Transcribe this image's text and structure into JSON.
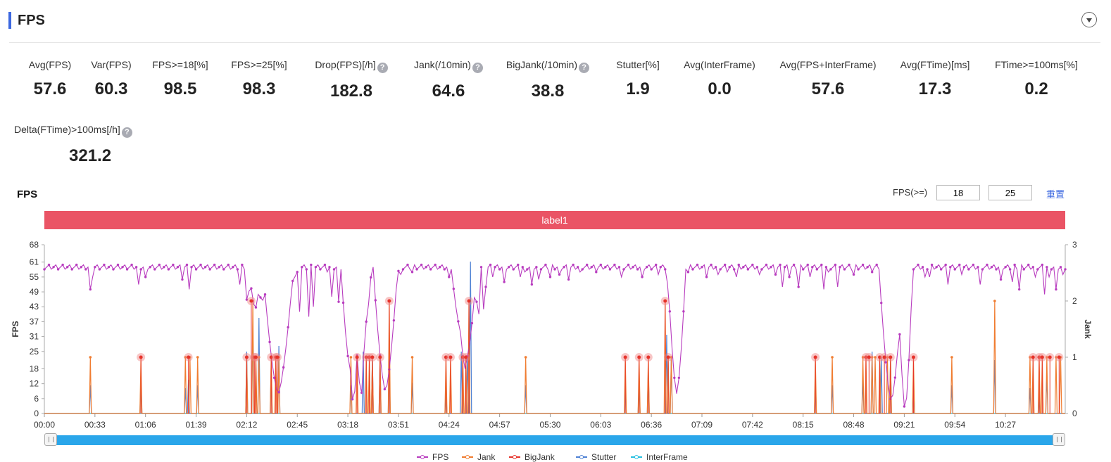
{
  "page": {
    "title": "FPS"
  },
  "metrics": [
    {
      "label": "Avg(FPS)",
      "value": "57.6",
      "help": false
    },
    {
      "label": "Var(FPS)",
      "value": "60.3",
      "help": false
    },
    {
      "label": "FPS>=18[%]",
      "value": "98.5",
      "help": false
    },
    {
      "label": "FPS>=25[%]",
      "value": "98.3",
      "help": false
    },
    {
      "label": "Drop(FPS)[/h]",
      "value": "182.8",
      "help": true
    },
    {
      "label": "Jank(/10min)",
      "value": "64.6",
      "help": true
    },
    {
      "label": "BigJank(/10min)",
      "value": "38.8",
      "help": true
    },
    {
      "label": "Stutter[%]",
      "value": "1.9",
      "help": false
    },
    {
      "label": "Avg(InterFrame)",
      "value": "0.0",
      "help": false
    },
    {
      "label": "Avg(FPS+InterFrame)",
      "value": "57.6",
      "help": false
    },
    {
      "label": "Avg(FTime)[ms]",
      "value": "17.3",
      "help": false
    },
    {
      "label": "FTime>=100ms[%]",
      "value": "0.2",
      "help": false
    },
    {
      "label": "Delta(FTime)>100ms[/h]",
      "value": "321.2",
      "help": true
    }
  ],
  "help_glyph": "?",
  "chart": {
    "title": "FPS",
    "fps_threshold_label": "FPS(>=)",
    "threshold_low": "18",
    "threshold_high": "25",
    "reset_label": "重置",
    "band_label": "label1"
  },
  "chart_data": {
    "type": "line",
    "ylabel": "FPS",
    "y2label": "Jank",
    "yticks": [
      0,
      6,
      12,
      18,
      25,
      31,
      37,
      43,
      49,
      55,
      61,
      68
    ],
    "ylim": [
      0,
      68
    ],
    "y2ticks": [
      0,
      1,
      2,
      3
    ],
    "y2lim": [
      0,
      3
    ],
    "xticks": [
      "00:00",
      "00:33",
      "01:06",
      "01:39",
      "02:12",
      "02:45",
      "03:18",
      "03:51",
      "04:24",
      "04:57",
      "05:30",
      "06:03",
      "06:36",
      "07:09",
      "07:42",
      "08:15",
      "08:48",
      "09:21",
      "09:54",
      "10:27"
    ],
    "xlim_sec": [
      0,
      666
    ],
    "fps_baseline": 59,
    "fps_dips_sec": [
      [
        30,
        50
      ],
      [
        32,
        55
      ],
      [
        62,
        52
      ],
      [
        66,
        55
      ],
      [
        90,
        54
      ],
      [
        94,
        50
      ],
      [
        128,
        52
      ],
      [
        132,
        57
      ],
      [
        135,
        53
      ],
      [
        140,
        56
      ],
      [
        142,
        50
      ],
      [
        146,
        55
      ],
      [
        152,
        48
      ],
      [
        155,
        57
      ],
      [
        160,
        55
      ],
      [
        166,
        41
      ],
      [
        172,
        39
      ],
      [
        176,
        43
      ],
      [
        184,
        57
      ],
      [
        188,
        47
      ],
      [
        192,
        45
      ],
      [
        196,
        57
      ],
      [
        200,
        52
      ],
      [
        203,
        55
      ],
      [
        212,
        56
      ],
      [
        220,
        57
      ],
      [
        224,
        52
      ],
      [
        232,
        56
      ],
      [
        240,
        57
      ],
      [
        264,
        55
      ],
      [
        268,
        50
      ],
      [
        272,
        57
      ],
      [
        276,
        50
      ],
      [
        280,
        55
      ],
      [
        282,
        45
      ],
      [
        284,
        40
      ],
      [
        286,
        42
      ],
      [
        288,
        51
      ],
      [
        292,
        55
      ],
      [
        300,
        53
      ],
      [
        310,
        55
      ],
      [
        314,
        57
      ],
      [
        318,
        52
      ],
      [
        322,
        54
      ],
      [
        330,
        55
      ],
      [
        336,
        56
      ],
      [
        338,
        58
      ],
      [
        342,
        54
      ],
      [
        350,
        57
      ],
      [
        360,
        57
      ],
      [
        376,
        55
      ],
      [
        390,
        55
      ],
      [
        400,
        56
      ],
      [
        410,
        55
      ],
      [
        420,
        57
      ],
      [
        432,
        55
      ],
      [
        440,
        56
      ],
      [
        446,
        57
      ],
      [
        452,
        55
      ],
      [
        466,
        56
      ],
      [
        477,
        56
      ],
      [
        482,
        51
      ],
      [
        486,
        55
      ],
      [
        492,
        51
      ],
      [
        500,
        55
      ],
      [
        508,
        50
      ],
      [
        512,
        57
      ],
      [
        518,
        51
      ],
      [
        528,
        56
      ],
      [
        540,
        57
      ],
      [
        560,
        57
      ],
      [
        574,
        55
      ],
      [
        578,
        55
      ],
      [
        590,
        52
      ],
      [
        598,
        56
      ],
      [
        610,
        52
      ],
      [
        624,
        54
      ],
      [
        632,
        53
      ],
      [
        636,
        50
      ],
      [
        646,
        55
      ],
      [
        652,
        48
      ],
      [
        656,
        55
      ],
      [
        660,
        50
      ],
      [
        664,
        56
      ]
    ],
    "fps_drops_sec": [
      [
        132,
        44,
        2
      ],
      [
        137,
        42,
        4
      ],
      [
        142,
        45,
        4
      ],
      [
        149,
        28,
        6
      ],
      [
        153,
        8,
        10
      ],
      [
        154,
        48,
        12
      ],
      [
        200,
        18,
        6
      ],
      [
        202,
        4,
        5
      ],
      [
        206,
        6,
        4
      ],
      [
        210,
        36,
        4
      ],
      [
        222,
        9,
        8
      ],
      [
        224,
        44,
        7
      ],
      [
        272,
        34,
        6
      ],
      [
        274,
        18,
        6
      ],
      [
        276,
        24,
        6
      ],
      [
        410,
        43,
        5
      ],
      [
        412,
        8,
        6
      ],
      [
        550,
        40,
        4
      ],
      [
        552,
        5,
        8
      ],
      [
        554,
        44,
        6
      ],
      [
        556,
        28,
        6
      ],
      [
        558,
        49,
        6
      ],
      [
        560,
        34,
        6
      ],
      [
        562,
        1,
        5
      ]
    ],
    "jank_events": [
      {
        "t": 30,
        "v": 1
      },
      {
        "t": 63,
        "v": 1
      },
      {
        "t": 92,
        "v": 1
      },
      {
        "t": 95,
        "v": 1
      },
      {
        "t": 100,
        "v": 1
      },
      {
        "t": 132,
        "v": 1
      },
      {
        "t": 136,
        "v": 2
      },
      {
        "t": 138,
        "v": 1
      },
      {
        "t": 140,
        "v": 1
      },
      {
        "t": 148,
        "v": 1
      },
      {
        "t": 151,
        "v": 1
      },
      {
        "t": 153,
        "v": 1
      },
      {
        "t": 200,
        "v": 1
      },
      {
        "t": 204,
        "v": 1
      },
      {
        "t": 210,
        "v": 1
      },
      {
        "t": 212,
        "v": 1
      },
      {
        "t": 214,
        "v": 1
      },
      {
        "t": 219,
        "v": 1
      },
      {
        "t": 225,
        "v": 2
      },
      {
        "t": 240,
        "v": 1
      },
      {
        "t": 262,
        "v": 1
      },
      {
        "t": 265,
        "v": 1
      },
      {
        "t": 273,
        "v": 1
      },
      {
        "t": 275,
        "v": 1
      },
      {
        "t": 277,
        "v": 2
      },
      {
        "t": 314,
        "v": 1
      },
      {
        "t": 379,
        "v": 1
      },
      {
        "t": 388,
        "v": 1
      },
      {
        "t": 394,
        "v": 1
      },
      {
        "t": 405,
        "v": 2
      },
      {
        "t": 407,
        "v": 1
      },
      {
        "t": 409,
        "v": 1
      },
      {
        "t": 503,
        "v": 1
      },
      {
        "t": 514,
        "v": 1
      },
      {
        "t": 534,
        "v": 1
      },
      {
        "t": 536,
        "v": 1
      },
      {
        "t": 540,
        "v": 1
      },
      {
        "t": 542,
        "v": 1
      },
      {
        "t": 545,
        "v": 1
      },
      {
        "t": 550,
        "v": 1
      },
      {
        "t": 552,
        "v": 1
      },
      {
        "t": 567,
        "v": 1
      },
      {
        "t": 592,
        "v": 1
      },
      {
        "t": 620,
        "v": 2
      },
      {
        "t": 643,
        "v": 1
      },
      {
        "t": 645,
        "v": 1
      },
      {
        "t": 649,
        "v": 1
      },
      {
        "t": 651,
        "v": 1
      },
      {
        "t": 654,
        "v": 1
      },
      {
        "t": 660,
        "v": 1
      },
      {
        "t": 663,
        "v": 1
      }
    ],
    "bigjank_events": [
      {
        "t": 63,
        "v": 1
      },
      {
        "t": 94,
        "v": 1
      },
      {
        "t": 132,
        "v": 1
      },
      {
        "t": 135,
        "v": 2
      },
      {
        "t": 137,
        "v": 1
      },
      {
        "t": 138,
        "v": 1
      },
      {
        "t": 148,
        "v": 1
      },
      {
        "t": 151,
        "v": 1
      },
      {
        "t": 152,
        "v": 1
      },
      {
        "t": 204,
        "v": 1
      },
      {
        "t": 210,
        "v": 1
      },
      {
        "t": 212,
        "v": 1
      },
      {
        "t": 214,
        "v": 1
      },
      {
        "t": 219,
        "v": 1
      },
      {
        "t": 225,
        "v": 2
      },
      {
        "t": 262,
        "v": 1
      },
      {
        "t": 265,
        "v": 1
      },
      {
        "t": 273,
        "v": 1
      },
      {
        "t": 275,
        "v": 1
      },
      {
        "t": 277,
        "v": 2
      },
      {
        "t": 379,
        "v": 1
      },
      {
        "t": 388,
        "v": 1
      },
      {
        "t": 394,
        "v": 1
      },
      {
        "t": 405,
        "v": 2
      },
      {
        "t": 407,
        "v": 1
      },
      {
        "t": 503,
        "v": 1
      },
      {
        "t": 536,
        "v": 1
      },
      {
        "t": 538,
        "v": 1
      },
      {
        "t": 545,
        "v": 1
      },
      {
        "t": 548,
        "v": 1
      },
      {
        "t": 552,
        "v": 1
      },
      {
        "t": 567,
        "v": 1
      },
      {
        "t": 645,
        "v": 1
      },
      {
        "t": 649,
        "v": 1
      },
      {
        "t": 651,
        "v": 1
      },
      {
        "t": 656,
        "v": 1
      },
      {
        "t": 662,
        "v": 1
      }
    ],
    "stutter_events": [
      {
        "t": 30,
        "v": 0.5
      },
      {
        "t": 63,
        "v": 0.6
      },
      {
        "t": 92,
        "v": 0.45
      },
      {
        "t": 94,
        "v": 0.6
      },
      {
        "t": 100,
        "v": 0.5
      },
      {
        "t": 132,
        "v": 1.1
      },
      {
        "t": 136,
        "v": 1.6
      },
      {
        "t": 140,
        "v": 1.7
      },
      {
        "t": 148,
        "v": 0.9
      },
      {
        "t": 153,
        "v": 1.2
      },
      {
        "t": 200,
        "v": 0.5
      },
      {
        "t": 208,
        "v": 1.1
      },
      {
        "t": 214,
        "v": 1.0
      },
      {
        "t": 219,
        "v": 1.0
      },
      {
        "t": 225,
        "v": 1.0
      },
      {
        "t": 240,
        "v": 0.55
      },
      {
        "t": 262,
        "v": 0.45
      },
      {
        "t": 272,
        "v": 1.1
      },
      {
        "t": 276,
        "v": 1.0
      },
      {
        "t": 278,
        "v": 2.7
      },
      {
        "t": 314,
        "v": 0.5
      },
      {
        "t": 379,
        "v": 0.55
      },
      {
        "t": 388,
        "v": 0.55
      },
      {
        "t": 394,
        "v": 0.8
      },
      {
        "t": 406,
        "v": 1.4
      },
      {
        "t": 409,
        "v": 1.0
      },
      {
        "t": 503,
        "v": 0.65
      },
      {
        "t": 514,
        "v": 0.5
      },
      {
        "t": 534,
        "v": 0.6
      },
      {
        "t": 540,
        "v": 1.1
      },
      {
        "t": 546,
        "v": 1.0
      },
      {
        "t": 552,
        "v": 1.0
      },
      {
        "t": 567,
        "v": 0.65
      },
      {
        "t": 592,
        "v": 0.5
      },
      {
        "t": 620,
        "v": 0.95
      },
      {
        "t": 643,
        "v": 0.45
      },
      {
        "t": 649,
        "v": 0.5
      },
      {
        "t": 654,
        "v": 0.7
      }
    ],
    "interframe_value": 0,
    "legend": [
      "FPS",
      "Jank",
      "BigJank",
      "Stutter",
      "InterFrame"
    ],
    "colors": {
      "FPS": "#b83cbf",
      "Jank": "#f07c30",
      "BigJank": "#e6322a",
      "Stutter": "#4f82d4",
      "InterFrame": "#27bfe0"
    },
    "grid": false
  }
}
